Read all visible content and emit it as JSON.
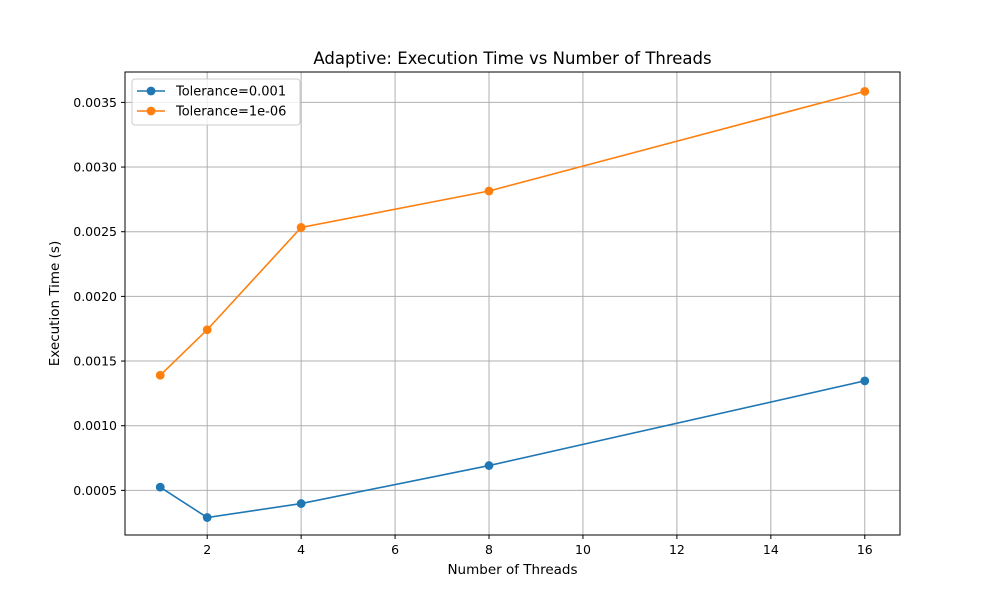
{
  "chart_data": {
    "type": "line",
    "title": "Adaptive: Execution Time vs Number of Threads",
    "xlabel": "Number of Threads",
    "ylabel": "Execution Time (s)",
    "x": [
      1,
      2,
      4,
      8,
      16
    ],
    "xlim": [
      0.25,
      16.75
    ],
    "ylim": [
      0.000155,
      0.003735
    ],
    "xticks": [
      2,
      4,
      6,
      8,
      10,
      12,
      14,
      16
    ],
    "xtick_labels": [
      "2",
      "4",
      "6",
      "8",
      "10",
      "12",
      "14",
      "16"
    ],
    "yticks": [
      0.0005,
      0.001,
      0.0015,
      0.002,
      0.0025,
      0.003,
      0.0035
    ],
    "ytick_labels": [
      "0.0005",
      "0.0010",
      "0.0015",
      "0.0020",
      "0.0025",
      "0.0030",
      "0.0035"
    ],
    "grid": true,
    "legend_position": "top-left",
    "series": [
      {
        "name": "Tolerance=0.001",
        "color": "#1f77b4",
        "marker": "circle",
        "values": [
          0.000525,
          0.00029,
          0.000398,
          0.000692,
          0.001347
        ]
      },
      {
        "name": "Tolerance=1e-06",
        "color": "#ff7f0e",
        "marker": "circle",
        "values": [
          0.00139,
          0.001742,
          0.002533,
          0.002815,
          0.003585
        ]
      }
    ]
  }
}
